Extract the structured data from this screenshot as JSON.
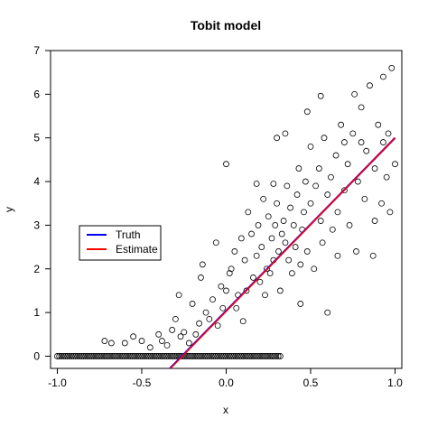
{
  "chart_data": {
    "type": "scatter",
    "title": "Tobit model",
    "xlabel": "x",
    "ylabel": "y",
    "xlim": [
      -1.04,
      1.04
    ],
    "ylim": [
      -0.28,
      7.0
    ],
    "xticks": [
      -1.0,
      -0.5,
      0.0,
      0.5,
      1.0
    ],
    "xtick_labels": [
      "-1.0",
      "-0.5",
      "0.0",
      "0.5",
      "1.0"
    ],
    "yticks": [
      0,
      1,
      2,
      3,
      4,
      5,
      6,
      7
    ],
    "ytick_labels": [
      "0",
      "1",
      "2",
      "3",
      "4",
      "5",
      "6",
      "7"
    ],
    "grid": false,
    "legend_position": "center-left",
    "series": [
      {
        "name": "Truth",
        "type": "line",
        "color": "#0000ff",
        "x": [
          -0.333,
          1.0
        ],
        "y": [
          -0.28,
          5.0
        ]
      },
      {
        "name": "Estimate",
        "type": "line",
        "color": "#ff0000",
        "x": [
          -0.33,
          1.0
        ],
        "y": [
          -0.28,
          5.0
        ]
      }
    ],
    "points": {
      "marker": "open-circle",
      "color": "#000000",
      "censored_at": 0,
      "censored_x": [
        -1.0,
        0.33
      ],
      "points": [
        [
          -0.72,
          0.35
        ],
        [
          -0.68,
          0.3
        ],
        [
          -0.6,
          0.3
        ],
        [
          -0.55,
          0.45
        ],
        [
          -0.5,
          0.35
        ],
        [
          -0.45,
          0.2
        ],
        [
          -0.4,
          0.5
        ],
        [
          -0.38,
          0.35
        ],
        [
          -0.35,
          0.25
        ],
        [
          -0.32,
          0.6
        ],
        [
          -0.3,
          0.85
        ],
        [
          -0.28,
          1.4
        ],
        [
          -0.27,
          0.45
        ],
        [
          -0.25,
          0.55
        ],
        [
          -0.22,
          0.3
        ],
        [
          -0.2,
          1.2
        ],
        [
          -0.18,
          0.5
        ],
        [
          -0.16,
          0.75
        ],
        [
          -0.15,
          1.8
        ],
        [
          -0.14,
          2.1
        ],
        [
          -0.12,
          1.0
        ],
        [
          -0.1,
          0.85
        ],
        [
          -0.08,
          1.3
        ],
        [
          -0.06,
          2.6
        ],
        [
          -0.05,
          0.7
        ],
        [
          -0.03,
          1.6
        ],
        [
          -0.02,
          1.1
        ],
        [
          0.0,
          1.5
        ],
        [
          0.0,
          4.4
        ],
        [
          0.02,
          1.9
        ],
        [
          0.03,
          2.0
        ],
        [
          0.05,
          2.4
        ],
        [
          0.06,
          1.1
        ],
        [
          0.07,
          1.4
        ],
        [
          0.09,
          2.7
        ],
        [
          0.1,
          0.8
        ],
        [
          0.11,
          2.2
        ],
        [
          0.12,
          1.5
        ],
        [
          0.13,
          3.3
        ],
        [
          0.15,
          2.8
        ],
        [
          0.16,
          1.8
        ],
        [
          0.18,
          2.3
        ],
        [
          0.19,
          3.0
        ],
        [
          0.2,
          1.7
        ],
        [
          0.21,
          2.5
        ],
        [
          0.22,
          3.6
        ],
        [
          0.23,
          1.4
        ],
        [
          0.24,
          2.0
        ],
        [
          0.25,
          3.2
        ],
        [
          0.26,
          1.9
        ],
        [
          0.27,
          2.7
        ],
        [
          0.28,
          2.2
        ],
        [
          0.29,
          3.0
        ],
        [
          0.3,
          3.5
        ],
        [
          0.3,
          5.0
        ],
        [
          0.31,
          2.4
        ],
        [
          0.32,
          1.5
        ],
        [
          0.33,
          2.8
        ],
        [
          0.34,
          3.1
        ],
        [
          0.35,
          2.6
        ],
        [
          0.36,
          3.9
        ],
        [
          0.37,
          2.2
        ],
        [
          0.38,
          3.4
        ],
        [
          0.39,
          1.9
        ],
        [
          0.4,
          3.0
        ],
        [
          0.41,
          2.5
        ],
        [
          0.42,
          3.7
        ],
        [
          0.43,
          4.3
        ],
        [
          0.44,
          1.2
        ],
        [
          0.45,
          2.9
        ],
        [
          0.46,
          3.3
        ],
        [
          0.47,
          4.0
        ],
        [
          0.48,
          2.4
        ],
        [
          0.5,
          3.5
        ],
        [
          0.5,
          4.8
        ],
        [
          0.52,
          2.0
        ],
        [
          0.53,
          3.9
        ],
        [
          0.55,
          4.3
        ],
        [
          0.56,
          3.1
        ],
        [
          0.57,
          2.6
        ],
        [
          0.58,
          5.0
        ],
        [
          0.6,
          3.7
        ],
        [
          0.6,
          1.0
        ],
        [
          0.62,
          4.1
        ],
        [
          0.63,
          2.9
        ],
        [
          0.65,
          4.6
        ],
        [
          0.66,
          3.3
        ],
        [
          0.68,
          5.3
        ],
        [
          0.7,
          3.8
        ],
        [
          0.72,
          4.4
        ],
        [
          0.73,
          3.0
        ],
        [
          0.75,
          5.1
        ],
        [
          0.77,
          2.4
        ],
        [
          0.78,
          4.0
        ],
        [
          0.8,
          5.7
        ],
        [
          0.82,
          3.6
        ],
        [
          0.83,
          4.7
        ],
        [
          0.85,
          6.2
        ],
        [
          0.87,
          2.3
        ],
        [
          0.88,
          4.3
        ],
        [
          0.9,
          5.3
        ],
        [
          0.92,
          3.5
        ],
        [
          0.93,
          6.4
        ],
        [
          0.95,
          4.1
        ],
        [
          0.96,
          5.1
        ],
        [
          0.97,
          3.3
        ],
        [
          0.98,
          6.6
        ],
        [
          1.0,
          4.4
        ],
        [
          0.93,
          4.9
        ],
        [
          0.88,
          3.1
        ],
        [
          0.8,
          4.9
        ],
        [
          0.76,
          6.0
        ],
        [
          0.7,
          4.9
        ],
        [
          0.66,
          2.3
        ],
        [
          0.56,
          5.96
        ],
        [
          0.48,
          5.6
        ],
        [
          0.44,
          2.1
        ],
        [
          0.35,
          5.1
        ],
        [
          0.28,
          3.95
        ],
        [
          0.18,
          3.95
        ]
      ]
    },
    "legend": {
      "entries": [
        {
          "label": "Truth",
          "color": "#0000ff"
        },
        {
          "label": "Estimate",
          "color": "#ff0000"
        }
      ]
    }
  }
}
